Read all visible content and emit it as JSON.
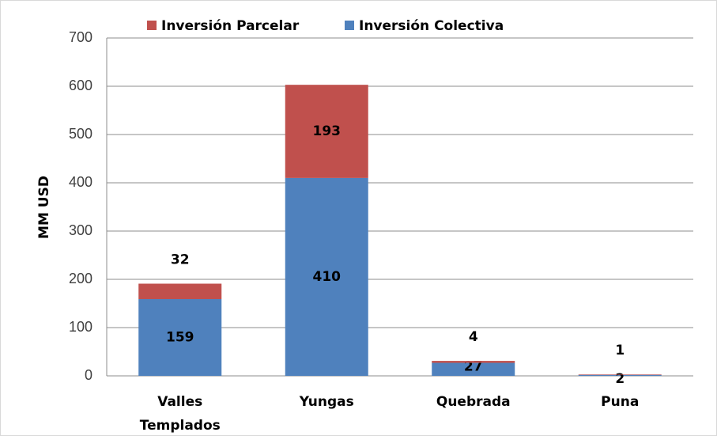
{
  "chart_data": {
    "type": "stacked_bar",
    "categories": [
      "Valles Templados",
      "Yungas",
      "Quebrada",
      "Puna"
    ],
    "series": [
      {
        "name": "Inversión Colectiva",
        "color": "#4f81bd",
        "values": [
          159,
          410,
          27,
          2
        ]
      },
      {
        "name": "Inversión Parcelar",
        "color": "#c0504d",
        "values": [
          32,
          193,
          4,
          1
        ]
      }
    ],
    "legend_order": [
      "Inversión Parcelar",
      "Inversión Colectiva"
    ],
    "y_label": "MM USD",
    "ylim": [
      0,
      700
    ],
    "yticks": [
      0,
      100,
      200,
      300,
      400,
      500,
      600,
      700
    ],
    "grid": true
  }
}
